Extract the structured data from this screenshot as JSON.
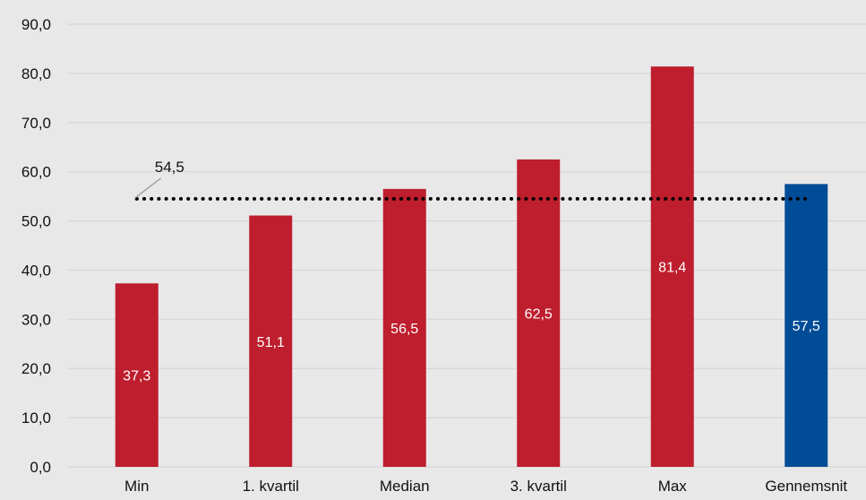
{
  "chart_data": {
    "type": "bar",
    "categories": [
      "Min",
      "1. kvartil",
      "Median",
      "3. kvartil",
      "Max",
      "Gennemsnit"
    ],
    "values": [
      37.3,
      51.1,
      56.5,
      62.5,
      81.4,
      57.5
    ],
    "data_labels": [
      "37,3",
      "51,1",
      "56,5",
      "62,5",
      "81,4",
      "57,5"
    ],
    "bar_colors": [
      "#be1e2d",
      "#be1e2d",
      "#be1e2d",
      "#be1e2d",
      "#be1e2d",
      "#004c97"
    ],
    "ylim": [
      0,
      90
    ],
    "y_ticks": [
      0,
      10,
      20,
      30,
      40,
      50,
      60,
      70,
      80,
      90
    ],
    "y_tick_labels": [
      "0,0",
      "10,0",
      "20,0",
      "30,0",
      "40,0",
      "50,0",
      "60,0",
      "70,0",
      "80,0",
      "90,0"
    ],
    "grid": true,
    "reference_line": {
      "value": 54.5,
      "label": "54,5",
      "style": "dotted",
      "color": "#000000"
    },
    "colors": {
      "background": "#e8e8e9",
      "gridline": "#d6d6d8",
      "text": "#111111"
    }
  }
}
